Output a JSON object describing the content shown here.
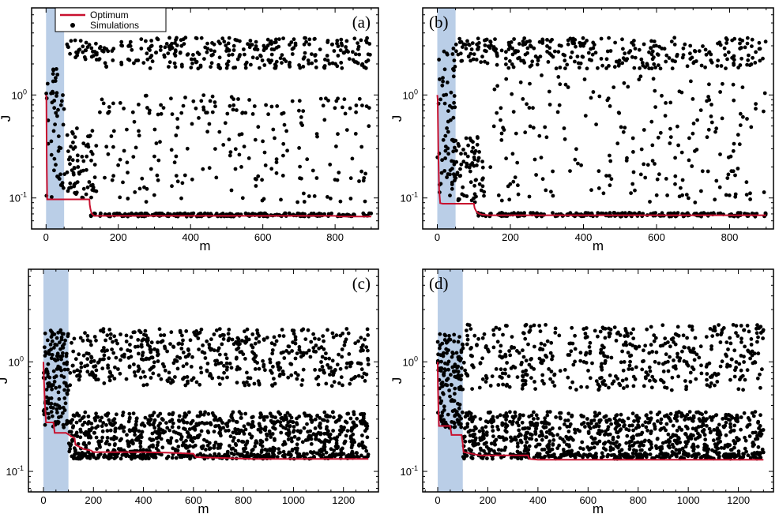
{
  "colors": {
    "optimum": "#c8102e",
    "simulation": "#000000",
    "shade": "#8fb0d8",
    "frame": "#000000"
  },
  "legend": {
    "optimum": "Optimum",
    "simulations": "Simulations"
  },
  "chart_data": [
    {
      "type": "scatter",
      "panel_label": "(a)",
      "xlabel": "m",
      "ylabel": "J",
      "y_scale": "log",
      "xlim": [
        -40,
        920
      ],
      "ylim": [
        0.05,
        7.0
      ],
      "x_ticks": [
        0,
        200,
        400,
        600,
        800
      ],
      "y_ticks": [
        {
          "base": "10",
          "exp": "-1",
          "value": 0.1
        },
        {
          "base": "10",
          "exp": "0",
          "value": 1.0
        }
      ],
      "shaded_region": [
        0,
        50
      ],
      "legend_shown": true,
      "optimum": {
        "name": "Optimum",
        "x": [
          0,
          1,
          2,
          3,
          50,
          120,
          121,
          123,
          126,
          129,
          131,
          134,
          140,
          190,
          300,
          450,
          600,
          700,
          800,
          810,
          850,
          900
        ],
        "y": [
          1.0,
          0.95,
          0.2,
          0.097,
          0.097,
          0.097,
          0.086,
          0.078,
          0.071,
          0.069,
          0.068,
          0.067,
          0.067,
          0.067,
          0.067,
          0.067,
          0.067,
          0.067,
          0.067,
          0.066,
          0.066,
          0.066
        ]
      },
      "scatter_clusters": [
        {
          "x_from": 0,
          "x_to": 50,
          "y_low": 0.1,
          "y_high": 2.0,
          "count": 50
        },
        {
          "x_from": 50,
          "x_to": 140,
          "y_low": 2.2,
          "y_high": 3.5,
          "count": 30
        },
        {
          "x_from": 50,
          "x_to": 140,
          "y_low": 0.1,
          "y_high": 0.5,
          "count": 70
        },
        {
          "x_from": 140,
          "x_to": 900,
          "y_low": 1.8,
          "y_high": 3.6,
          "count": 300
        },
        {
          "x_from": 140,
          "x_to": 900,
          "y_low": 0.65,
          "y_high": 1.0,
          "count": 70
        },
        {
          "x_from": 140,
          "x_to": 900,
          "y_low": 0.09,
          "y_high": 0.8,
          "count": 150
        },
        {
          "x_from": 120,
          "x_to": 900,
          "y_low": 0.066,
          "y_high": 0.071,
          "count": 260
        }
      ]
    },
    {
      "type": "scatter",
      "panel_label": "(b)",
      "xlabel": "m",
      "ylabel": "J",
      "y_scale": "log",
      "xlim": [
        -40,
        920
      ],
      "ylim": [
        0.05,
        7.0
      ],
      "x_ticks": [
        0,
        200,
        400,
        600,
        800
      ],
      "y_ticks": [
        {
          "base": "10",
          "exp": "-1",
          "value": 0.1
        },
        {
          "base": "10",
          "exp": "0",
          "value": 1.0
        }
      ],
      "shaded_region": [
        0,
        50
      ],
      "legend_shown": false,
      "optimum": {
        "name": "Optimum",
        "x": [
          0,
          1,
          2,
          3,
          5,
          8,
          15,
          100,
          102,
          106,
          112,
          122,
          140,
          180,
          300,
          450,
          600,
          700,
          800,
          900
        ],
        "y": [
          1.0,
          0.9,
          0.5,
          0.25,
          0.12,
          0.089,
          0.088,
          0.088,
          0.08,
          0.075,
          0.071,
          0.069,
          0.068,
          0.068,
          0.068,
          0.068,
          0.068,
          0.068,
          0.068,
          0.068
        ]
      },
      "scatter_clusters": [
        {
          "x_from": 0,
          "x_to": 50,
          "y_low": 0.1,
          "y_high": 3.0,
          "count": 60
        },
        {
          "x_from": 50,
          "x_to": 130,
          "y_low": 2.0,
          "y_high": 3.6,
          "count": 35
        },
        {
          "x_from": 40,
          "x_to": 130,
          "y_low": 0.09,
          "y_high": 0.4,
          "count": 80
        },
        {
          "x_from": 130,
          "x_to": 900,
          "y_low": 1.8,
          "y_high": 3.6,
          "count": 280
        },
        {
          "x_from": 140,
          "x_to": 900,
          "y_low": 0.09,
          "y_high": 1.6,
          "count": 210
        },
        {
          "x_from": 110,
          "x_to": 900,
          "y_low": 0.066,
          "y_high": 0.072,
          "count": 260
        }
      ]
    },
    {
      "type": "scatter",
      "panel_label": "(c)",
      "xlabel": "m",
      "ylabel": "J",
      "y_scale": "log",
      "xlim": [
        -60,
        1340
      ],
      "ylim": [
        0.065,
        7.0
      ],
      "x_ticks": [
        0,
        200,
        400,
        600,
        800,
        1000,
        1200
      ],
      "y_ticks": [
        {
          "base": "10",
          "exp": "-1",
          "value": 0.1
        },
        {
          "base": "10",
          "exp": "0",
          "value": 1.0
        }
      ],
      "shaded_region": [
        0,
        100
      ],
      "legend_shown": false,
      "optimum": {
        "name": "Optimum",
        "x": [
          0,
          2,
          5,
          10,
          40,
          45,
          90,
          125,
          128,
          160,
          190,
          200,
          300,
          400,
          500,
          600,
          610,
          700,
          840,
          900,
          1000,
          1100,
          1120,
          1200,
          1300
        ],
        "y": [
          1.0,
          0.7,
          0.45,
          0.28,
          0.28,
          0.225,
          0.225,
          0.2,
          0.175,
          0.16,
          0.155,
          0.15,
          0.15,
          0.15,
          0.148,
          0.145,
          0.135,
          0.133,
          0.13,
          0.13,
          0.13,
          0.13,
          0.13,
          0.13,
          0.13
        ]
      },
      "scatter_clusters": [
        {
          "x_from": 0,
          "x_to": 100,
          "y_low": 0.25,
          "y_high": 2.0,
          "count": 140
        },
        {
          "x_from": 100,
          "x_to": 1300,
          "y_low": 0.6,
          "y_high": 2.0,
          "count": 520
        },
        {
          "x_from": 100,
          "x_to": 1300,
          "y_low": 0.14,
          "y_high": 0.35,
          "count": 780
        },
        {
          "x_from": 100,
          "x_to": 1300,
          "y_low": 0.13,
          "y_high": 0.145,
          "count": 220
        }
      ]
    },
    {
      "type": "scatter",
      "panel_label": "(d)",
      "xlabel": "m",
      "ylabel": "J",
      "y_scale": "log",
      "xlim": [
        -60,
        1340
      ],
      "ylim": [
        0.065,
        7.0
      ],
      "x_ticks": [
        0,
        200,
        400,
        600,
        800,
        1000,
        1200
      ],
      "y_ticks": [
        {
          "base": "10",
          "exp": "-1",
          "value": 0.1
        },
        {
          "base": "10",
          "exp": "0",
          "value": 1.0
        }
      ],
      "shaded_region": [
        0,
        100
      ],
      "legend_shown": false,
      "optimum": {
        "name": "Optimum",
        "x": [
          0,
          1,
          3,
          5,
          50,
          55,
          95,
          100,
          103,
          170,
          200,
          360,
          365,
          400,
          500,
          700,
          900,
          1000,
          1200,
          1300
        ],
        "y": [
          1.0,
          0.6,
          0.35,
          0.26,
          0.26,
          0.215,
          0.215,
          0.18,
          0.15,
          0.14,
          0.14,
          0.14,
          0.13,
          0.128,
          0.128,
          0.128,
          0.128,
          0.128,
          0.128,
          0.128
        ]
      },
      "scatter_clusters": [
        {
          "x_from": 0,
          "x_to": 100,
          "y_low": 0.25,
          "y_high": 1.8,
          "count": 150
        },
        {
          "x_from": 100,
          "x_to": 1300,
          "y_low": 0.55,
          "y_high": 2.2,
          "count": 480
        },
        {
          "x_from": 100,
          "x_to": 1300,
          "y_low": 0.135,
          "y_high": 0.35,
          "count": 800
        },
        {
          "x_from": 100,
          "x_to": 1300,
          "y_low": 0.13,
          "y_high": 0.145,
          "count": 200
        }
      ]
    }
  ]
}
